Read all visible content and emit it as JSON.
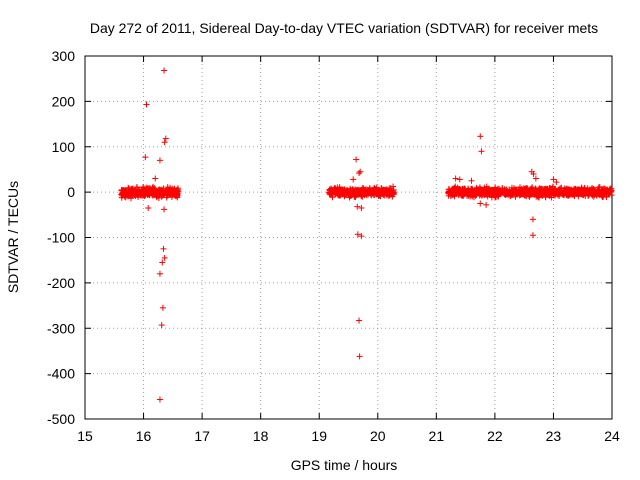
{
  "chart_data": {
    "type": "scatter",
    "title": "Day 272 of 2011, Sidereal Day-to-day VTEC variation (SDTVAR) for receiver mets",
    "xlabel": "GPS time / hours",
    "ylabel": "SDTVAR / TECUs",
    "xlim": [
      15,
      24
    ],
    "ylim": [
      -500,
      300
    ],
    "xticks": [
      15,
      16,
      17,
      18,
      19,
      20,
      21,
      22,
      23,
      24
    ],
    "yticks": [
      -500,
      -400,
      -300,
      -200,
      -100,
      0,
      100,
      200,
      300
    ],
    "grid": true,
    "marker": "+",
    "color": "#ff0000",
    "bands": [
      {
        "x_start": 15.62,
        "x_end": 16.6,
        "y_min": -15,
        "y_max": 15
      },
      {
        "x_start": 19.17,
        "x_end": 20.28,
        "y_min": -14,
        "y_max": 14
      },
      {
        "x_start": 21.2,
        "x_end": 24.0,
        "y_min": -14,
        "y_max": 14
      }
    ],
    "outliers": [
      {
        "x": 16.35,
        "y": 268
      },
      {
        "x": 16.05,
        "y": 193
      },
      {
        "x": 16.38,
        "y": 118
      },
      {
        "x": 16.36,
        "y": 110
      },
      {
        "x": 16.03,
        "y": 77
      },
      {
        "x": 16.28,
        "y": 70
      },
      {
        "x": 16.2,
        "y": 30
      },
      {
        "x": 16.08,
        "y": -35
      },
      {
        "x": 16.35,
        "y": -38
      },
      {
        "x": 16.34,
        "y": -125
      },
      {
        "x": 16.36,
        "y": -145
      },
      {
        "x": 16.32,
        "y": -155
      },
      {
        "x": 16.28,
        "y": -180
      },
      {
        "x": 16.33,
        "y": -255
      },
      {
        "x": 16.31,
        "y": -293
      },
      {
        "x": 16.28,
        "y": -457
      },
      {
        "x": 19.63,
        "y": 72
      },
      {
        "x": 19.7,
        "y": 45
      },
      {
        "x": 19.68,
        "y": 42
      },
      {
        "x": 19.58,
        "y": 28
      },
      {
        "x": 19.65,
        "y": -32
      },
      {
        "x": 19.72,
        "y": -35
      },
      {
        "x": 19.66,
        "y": -93
      },
      {
        "x": 19.72,
        "y": -97
      },
      {
        "x": 19.68,
        "y": -283
      },
      {
        "x": 19.69,
        "y": -362
      },
      {
        "x": 21.33,
        "y": 30
      },
      {
        "x": 21.4,
        "y": 28
      },
      {
        "x": 21.6,
        "y": 25
      },
      {
        "x": 21.75,
        "y": 123
      },
      {
        "x": 21.77,
        "y": 90
      },
      {
        "x": 21.75,
        "y": -25
      },
      {
        "x": 21.85,
        "y": -28
      },
      {
        "x": 22.63,
        "y": 45
      },
      {
        "x": 22.66,
        "y": 40
      },
      {
        "x": 22.65,
        "y": -60
      },
      {
        "x": 22.65,
        "y": -95
      },
      {
        "x": 22.7,
        "y": 30
      },
      {
        "x": 23.0,
        "y": 28
      },
      {
        "x": 23.05,
        "y": 22
      }
    ]
  }
}
